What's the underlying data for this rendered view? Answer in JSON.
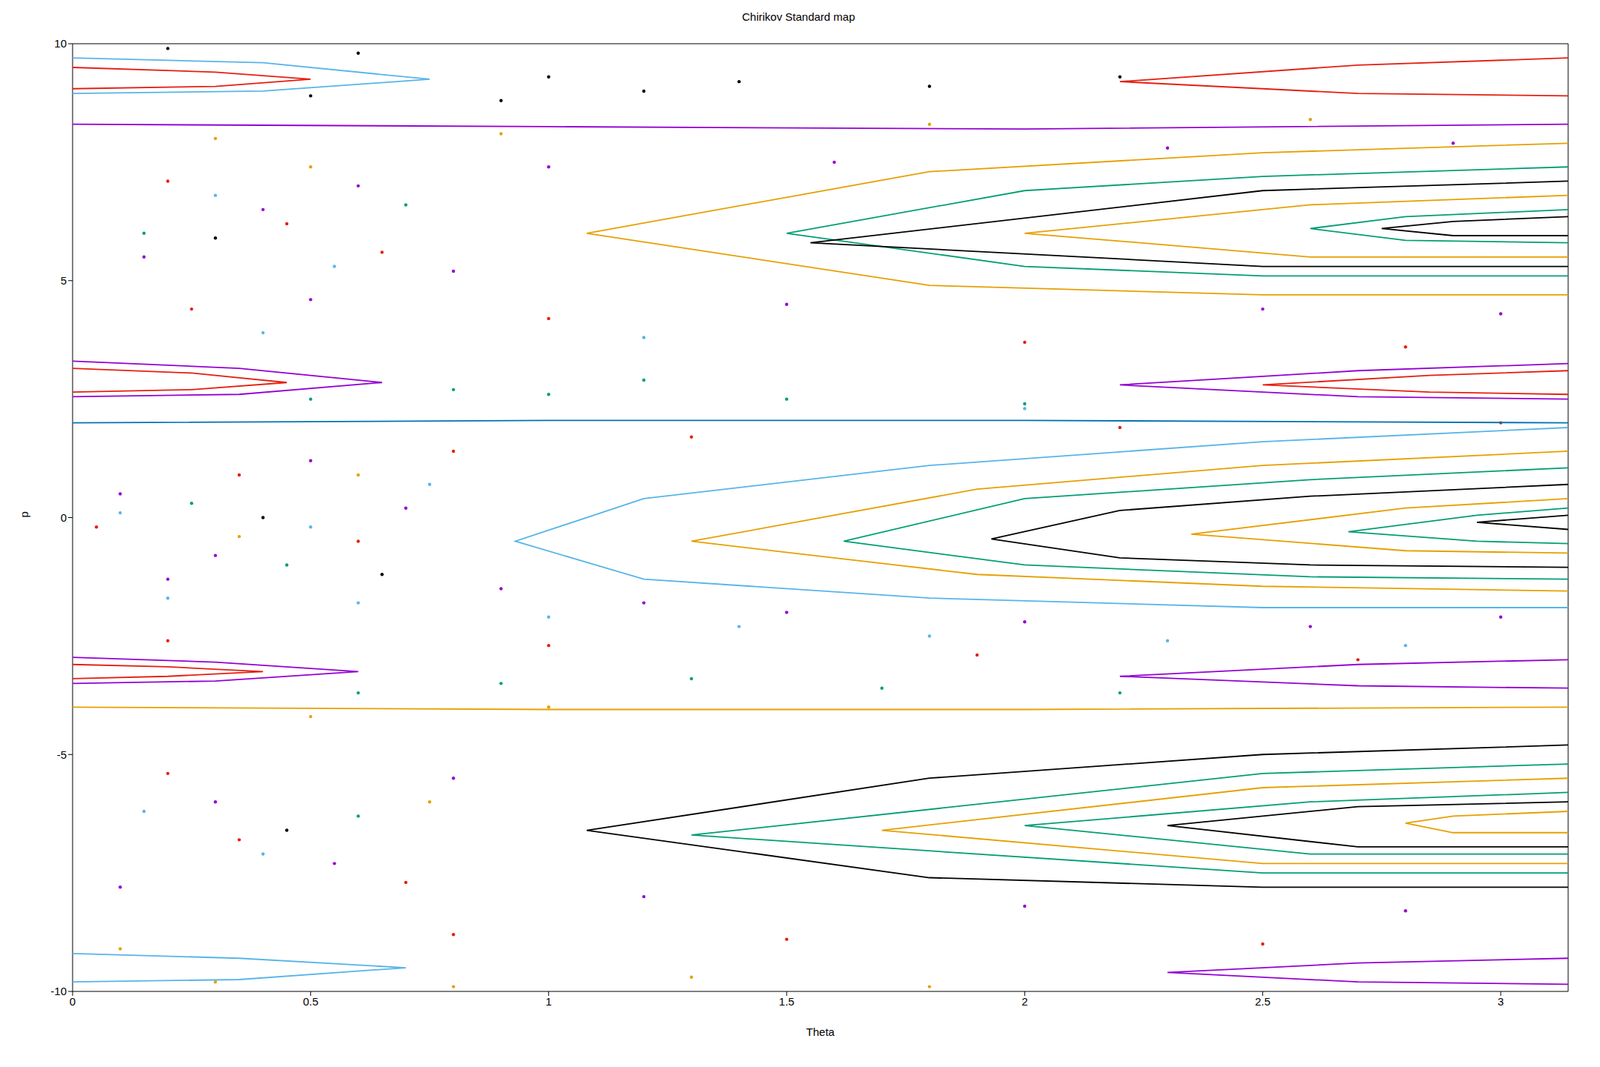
{
  "chart_data": {
    "type": "scatter",
    "title": "Chirikov Standard map",
    "x_label": "Theta",
    "y_label": "p",
    "xlim": [
      0,
      3.1416
    ],
    "ylim": [
      -10,
      10
    ],
    "xticks": [
      0,
      0.5,
      1,
      1.5,
      2,
      2.5,
      3
    ],
    "yticks": [
      -10,
      -5,
      0,
      5,
      10
    ],
    "grid": false,
    "series": [
      {
        "color": "#9400d3",
        "marker": "dot",
        "x": [
          0.1,
          0.3,
          0.5,
          0.7,
          0.2,
          0.9,
          1.2,
          1.5,
          2.0,
          2.6,
          3.0,
          0.4,
          0.15,
          0.6,
          0.8,
          1.0,
          1.6,
          2.3,
          2.9,
          0.3,
          0.55,
          0.8,
          0.1,
          1.2,
          2.0,
          2.8,
          0.5,
          1.5,
          2.5,
          3.0
        ],
        "y": [
          0.5,
          -0.8,
          1.2,
          0.2,
          -1.3,
          -1.5,
          -1.8,
          -2.0,
          -2.2,
          -2.3,
          -2.1,
          6.5,
          5.5,
          7.0,
          5.2,
          7.4,
          7.5,
          7.8,
          7.9,
          -6.0,
          -7.3,
          -5.5,
          -7.8,
          -8.0,
          -8.2,
          -8.3,
          4.6,
          4.5,
          4.4,
          4.3
        ]
      },
      {
        "color": "#e51e10",
        "marker": "dot",
        "x": [
          0.05,
          0.35,
          0.6,
          0.8,
          0.25,
          1.0,
          2.0,
          2.8,
          0.2,
          1.0,
          1.9,
          2.7,
          0.45,
          0.2,
          0.65,
          0.35,
          0.7,
          0.2,
          1.5,
          2.5,
          0.8,
          1.3,
          2.2,
          3.0
        ],
        "y": [
          -0.2,
          0.9,
          -0.5,
          1.4,
          4.4,
          4.2,
          3.7,
          3.6,
          -2.6,
          -2.7,
          -2.9,
          -3.0,
          6.2,
          7.1,
          5.6,
          -6.8,
          -7.7,
          -5.4,
          -8.9,
          -9.0,
          -8.8,
          1.7,
          1.9,
          2.0
        ]
      },
      {
        "color": "#56b4e9",
        "marker": "dot",
        "x": [
          0.2,
          0.6,
          1.0,
          1.4,
          1.8,
          2.3,
          2.8,
          0.1,
          0.5,
          0.75,
          0.3,
          0.55,
          0.4,
          0.15,
          0.4,
          1.2,
          2.0
        ],
        "y": [
          -1.7,
          -1.8,
          -2.1,
          -2.3,
          -2.5,
          -2.6,
          -2.7,
          0.1,
          -0.2,
          0.7,
          6.8,
          5.3,
          -7.1,
          -6.2,
          3.9,
          3.8,
          2.3
        ]
      },
      {
        "color": "#009e73",
        "marker": "dot",
        "x": [
          0.5,
          1.0,
          1.5,
          2.0,
          1.2,
          0.8,
          0.9,
          1.3,
          1.7,
          2.2,
          0.6,
          0.25,
          0.45,
          0.15,
          0.7,
          0.6
        ],
        "y": [
          2.5,
          2.6,
          2.5,
          2.4,
          2.9,
          2.7,
          -3.5,
          -3.4,
          -3.6,
          -3.7,
          -3.7,
          0.3,
          -1.0,
          6.0,
          6.6,
          -6.3
        ]
      },
      {
        "color": "#e6a000",
        "marker": "dot",
        "x": [
          0.3,
          0.8,
          1.3,
          1.8,
          0.1,
          0.5,
          1.0,
          0.3,
          0.9,
          1.8,
          2.6,
          0.6,
          0.35,
          0.5,
          0.75
        ],
        "y": [
          -9.8,
          -9.9,
          -9.7,
          -9.9,
          -9.1,
          -4.2,
          -4.0,
          8.0,
          8.1,
          8.3,
          8.4,
          0.9,
          -0.4,
          7.4,
          -6.0
        ]
      },
      {
        "color": "#000000",
        "marker": "dot",
        "x": [
          0.2,
          0.6,
          1.0,
          1.4,
          1.8,
          2.2,
          0.5,
          0.9,
          1.2,
          0.4,
          0.65,
          0.3,
          0.45
        ],
        "y": [
          9.9,
          9.8,
          9.3,
          9.2,
          9.1,
          9.3,
          8.9,
          8.8,
          9.0,
          0.0,
          -1.2,
          5.9,
          -6.6
        ]
      },
      {
        "color": "#56b4e9",
        "marker": "none",
        "line_style": "solid",
        "x": [
          3.1416,
          2.5,
          1.8,
          1.2,
          0.93,
          1.2,
          1.8,
          2.5,
          3.1416
        ],
        "y": [
          1.9,
          1.6,
          1.1,
          0.4,
          -0.5,
          -1.3,
          -1.7,
          -1.9,
          -1.9
        ]
      },
      {
        "color": "#e69f00",
        "marker": "none",
        "line_style": "solid",
        "x": [
          3.1416,
          2.5,
          1.9,
          1.3,
          1.9,
          2.5,
          3.1416
        ],
        "y": [
          1.4,
          1.1,
          0.6,
          -0.5,
          -1.2,
          -1.45,
          -1.55
        ]
      },
      {
        "color": "#009e73",
        "marker": "none",
        "line_style": "solid",
        "x": [
          3.1416,
          2.6,
          2.0,
          1.62,
          2.0,
          2.6,
          3.1416
        ],
        "y": [
          1.05,
          0.8,
          0.4,
          -0.5,
          -1.0,
          -1.25,
          -1.3
        ]
      },
      {
        "color": "#000000",
        "marker": "none",
        "line_style": "solid",
        "x": [
          3.1416,
          2.6,
          2.2,
          1.93,
          2.2,
          2.6,
          3.1416
        ],
        "y": [
          0.7,
          0.45,
          0.15,
          -0.45,
          -0.85,
          -1.0,
          -1.05
        ]
      },
      {
        "color": "#e69f00",
        "marker": "none",
        "line_style": "solid",
        "x": [
          3.1416,
          2.8,
          2.35,
          2.8,
          3.1416
        ],
        "y": [
          0.4,
          0.2,
          -0.35,
          -0.7,
          -0.75
        ]
      },
      {
        "color": "#009e73",
        "marker": "none",
        "line_style": "solid",
        "x": [
          3.1416,
          2.95,
          2.68,
          2.95,
          3.1416
        ],
        "y": [
          0.2,
          0.05,
          -0.3,
          -0.5,
          -0.55
        ]
      },
      {
        "color": "#000000",
        "marker": "none",
        "line_style": "solid",
        "x": [
          3.1416,
          2.95,
          3.1416
        ],
        "y": [
          0.05,
          -0.1,
          -0.25
        ]
      },
      {
        "color": "#e69f00",
        "marker": "none",
        "line_style": "solid",
        "x": [
          3.1416,
          2.5,
          1.8,
          1.08,
          1.8,
          2.5,
          3.1416
        ],
        "y": [
          7.9,
          7.7,
          7.3,
          6.0,
          4.9,
          4.7,
          4.7
        ]
      },
      {
        "color": "#009e73",
        "marker": "none",
        "line_style": "solid",
        "x": [
          3.1416,
          2.5,
          2.0,
          1.5,
          2.0,
          2.5,
          3.1416
        ],
        "y": [
          7.4,
          7.2,
          6.9,
          6.0,
          5.3,
          5.1,
          5.1
        ]
      },
      {
        "color": "#000000",
        "marker": "none",
        "line_style": "solid",
        "x": [
          3.1416,
          2.5,
          1.55,
          2.5,
          3.1416
        ],
        "y": [
          7.1,
          6.9,
          5.8,
          5.3,
          5.3
        ]
      },
      {
        "color": "#e69f00",
        "marker": "none",
        "line_style": "solid",
        "x": [
          3.1416,
          2.6,
          2.0,
          2.6,
          3.1416
        ],
        "y": [
          6.8,
          6.6,
          6.0,
          5.5,
          5.5
        ]
      },
      {
        "color": "#009e73",
        "marker": "none",
        "line_style": "solid",
        "x": [
          3.1416,
          2.8,
          2.6,
          2.8,
          3.1416
        ],
        "y": [
          6.5,
          6.35,
          6.1,
          5.85,
          5.8
        ]
      },
      {
        "color": "#000000",
        "marker": "none",
        "line_style": "solid",
        "x": [
          3.1416,
          2.9,
          2.75,
          2.9,
          3.1416
        ],
        "y": [
          6.35,
          6.25,
          6.1,
          5.95,
          5.95
        ]
      },
      {
        "color": "#000000",
        "marker": "none",
        "line_style": "solid",
        "x": [
          3.1416,
          2.5,
          1.8,
          1.08,
          1.8,
          2.5,
          3.1416
        ],
        "y": [
          -4.8,
          -5.0,
          -5.5,
          -6.6,
          -7.6,
          -7.8,
          -7.8
        ]
      },
      {
        "color": "#009e73",
        "marker": "none",
        "line_style": "solid",
        "x": [
          3.1416,
          2.5,
          1.3,
          2.5,
          3.1416
        ],
        "y": [
          -5.2,
          -5.4,
          -6.7,
          -7.5,
          -7.5
        ]
      },
      {
        "color": "#e69f00",
        "marker": "none",
        "line_style": "solid",
        "x": [
          3.1416,
          2.5,
          1.7,
          2.5,
          3.1416
        ],
        "y": [
          -5.5,
          -5.7,
          -6.6,
          -7.3,
          -7.3
        ]
      },
      {
        "color": "#009e73",
        "marker": "none",
        "line_style": "solid",
        "x": [
          3.1416,
          2.6,
          2.0,
          2.6,
          3.1416
        ],
        "y": [
          -5.8,
          -6.0,
          -6.5,
          -7.1,
          -7.1
        ]
      },
      {
        "color": "#000000",
        "marker": "none",
        "line_style": "solid",
        "x": [
          3.1416,
          2.7,
          2.3,
          2.7,
          3.1416
        ],
        "y": [
          -6.0,
          -6.1,
          -6.5,
          -6.95,
          -6.95
        ]
      },
      {
        "color": "#e69f00",
        "marker": "none",
        "line_style": "solid",
        "x": [
          3.1416,
          2.9,
          2.8,
          2.9,
          3.1416
        ],
        "y": [
          -6.2,
          -6.3,
          -6.45,
          -6.65,
          -6.65
        ]
      },
      {
        "color": "#9400d3",
        "marker": "none",
        "line_style": "solid",
        "x": [
          0,
          0.35,
          0.65,
          0.35,
          0
        ],
        "y": [
          3.3,
          3.15,
          2.85,
          2.6,
          2.55
        ]
      },
      {
        "color": "#e51e10",
        "marker": "none",
        "line_style": "solid",
        "x": [
          0,
          0.25,
          0.45,
          0.25,
          0
        ],
        "y": [
          3.15,
          3.05,
          2.85,
          2.7,
          2.65
        ]
      },
      {
        "color": "#9400d3",
        "marker": "none",
        "line_style": "solid",
        "x": [
          3.1416,
          2.7,
          2.2,
          2.7,
          3.1416
        ],
        "y": [
          3.25,
          3.1,
          2.8,
          2.55,
          2.5
        ]
      },
      {
        "color": "#e51e10",
        "marker": "none",
        "line_style": "solid",
        "x": [
          3.1416,
          2.85,
          2.5,
          2.85,
          3.1416
        ],
        "y": [
          3.1,
          3.0,
          2.8,
          2.65,
          2.6
        ]
      },
      {
        "color": "#9400d3",
        "marker": "none",
        "line_style": "solid",
        "x": [
          0,
          0.3,
          0.6,
          0.3,
          0
        ],
        "y": [
          -2.95,
          -3.05,
          -3.25,
          -3.45,
          -3.5
        ]
      },
      {
        "color": "#e51e10",
        "marker": "none",
        "line_style": "solid",
        "x": [
          0,
          0.2,
          0.4,
          0.2,
          0
        ],
        "y": [
          -3.1,
          -3.15,
          -3.25,
          -3.35,
          -3.4
        ]
      },
      {
        "color": "#9400d3",
        "marker": "none",
        "line_style": "solid",
        "x": [
          3.1416,
          2.7,
          2.2,
          2.7,
          3.1416
        ],
        "y": [
          -3.0,
          -3.1,
          -3.35,
          -3.55,
          -3.6
        ]
      },
      {
        "color": "#56b4e9",
        "marker": "none",
        "line_style": "solid",
        "x": [
          0,
          0.4,
          0.75,
          0.4,
          0
        ],
        "y": [
          9.7,
          9.6,
          9.25,
          9.0,
          8.95
        ]
      },
      {
        "color": "#e51e10",
        "marker": "none",
        "line_style": "solid",
        "x": [
          0,
          0.3,
          0.5,
          0.3,
          0
        ],
        "y": [
          9.5,
          9.4,
          9.25,
          9.1,
          9.05
        ]
      },
      {
        "color": "#e51e10",
        "marker": "none",
        "line_style": "solid",
        "x": [
          3.1416,
          2.7,
          2.2,
          2.7,
          3.1416
        ],
        "y": [
          9.7,
          9.55,
          9.2,
          8.95,
          8.9
        ]
      },
      {
        "color": "#56b4e9",
        "marker": "none",
        "line_style": "solid",
        "x": [
          0,
          0.35,
          0.7,
          0.35,
          0
        ],
        "y": [
          -9.2,
          -9.3,
          -9.5,
          -9.75,
          -9.8
        ]
      },
      {
        "color": "#9400d3",
        "marker": "none",
        "line_style": "solid",
        "x": [
          3.1416,
          2.7,
          2.3,
          2.7,
          3.1416
        ],
        "y": [
          -9.3,
          -9.4,
          -9.6,
          -9.8,
          -9.85
        ]
      },
      {
        "color": "#9400d3",
        "marker": "none",
        "line_style": "solid",
        "x": [
          0,
          1,
          2,
          3.1416
        ],
        "y": [
          8.3,
          8.25,
          8.2,
          8.3
        ]
      },
      {
        "color": "#0072b2",
        "marker": "none",
        "line_style": "solid",
        "x": [
          0,
          1,
          2,
          3.1416
        ],
        "y": [
          2.0,
          2.05,
          2.05,
          2.0
        ]
      },
      {
        "color": "#e6a000",
        "marker": "none",
        "line_style": "solid",
        "x": [
          0,
          1,
          2,
          3.1416
        ],
        "y": [
          -4.0,
          -4.05,
          -4.05,
          -4.0
        ]
      }
    ]
  }
}
